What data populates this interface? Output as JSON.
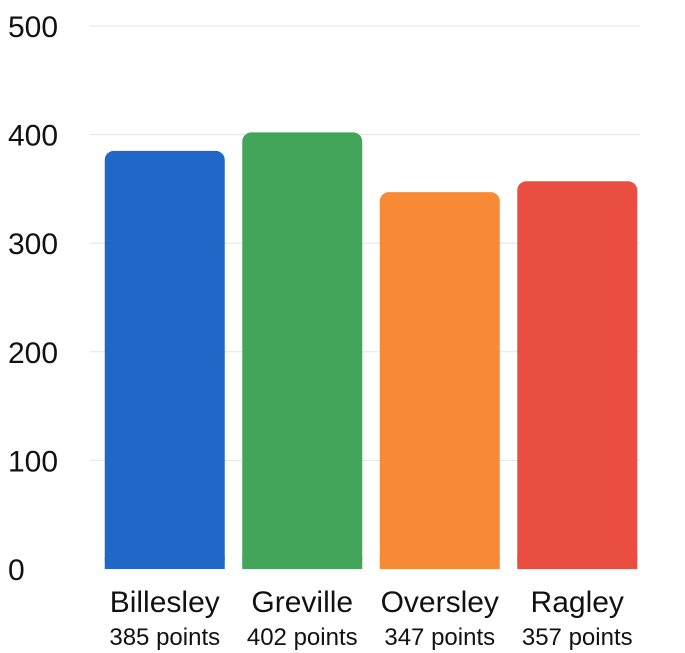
{
  "chart_data": {
    "type": "bar",
    "title": "",
    "xlabel": "",
    "ylabel": "",
    "ylim": [
      0,
      500
    ],
    "yticks": [
      "0",
      "100",
      "200",
      "300",
      "400",
      "500"
    ],
    "grid": true,
    "categories": [
      "Billesley",
      "Greville",
      "Oversley",
      "Ragley"
    ],
    "values": [
      385,
      402,
      347,
      357
    ],
    "value_labels": [
      "385 points",
      "402 points",
      "347 points",
      "357 points"
    ],
    "colors": [
      "#2167c8",
      "#43a55a",
      "#f98a35",
      "#ea4e40"
    ]
  }
}
